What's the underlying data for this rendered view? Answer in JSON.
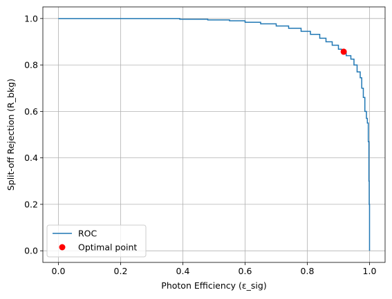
{
  "chart_data": {
    "type": "line",
    "xlabel": "Photon Efficiency (ε_sig)",
    "ylabel": "Split-off Rejection (R_bkg)",
    "xlim": [
      -0.05,
      1.05
    ],
    "ylim": [
      -0.05,
      1.05
    ],
    "xticks": [
      0.0,
      0.2,
      0.4,
      0.6,
      0.8,
      1.0
    ],
    "yticks": [
      0.0,
      0.2,
      0.4,
      0.6,
      0.8,
      1.0
    ],
    "xtick_labels": [
      "0.0",
      "0.2",
      "0.4",
      "0.6",
      "0.8",
      "1.0"
    ],
    "ytick_labels": [
      "0.0",
      "0.2",
      "0.4",
      "0.6",
      "0.8",
      "1.0"
    ],
    "grid": true,
    "legend_position": "lower-left",
    "series": [
      {
        "name": "ROC",
        "color": "#1f77b4",
        "x": [
          0.0,
          0.39,
          0.39,
          0.48,
          0.48,
          0.55,
          0.55,
          0.6,
          0.6,
          0.65,
          0.65,
          0.7,
          0.7,
          0.74,
          0.74,
          0.78,
          0.78,
          0.81,
          0.81,
          0.84,
          0.84,
          0.86,
          0.86,
          0.88,
          0.88,
          0.9,
          0.9,
          0.91,
          0.91,
          0.925,
          0.925,
          0.94,
          0.94,
          0.95,
          0.95,
          0.96,
          0.96,
          0.97,
          0.97,
          0.975,
          0.975,
          0.98,
          0.98,
          0.985,
          0.985,
          0.99,
          0.99,
          0.993,
          0.993,
          0.996,
          0.996,
          0.998,
          0.998,
          0.999,
          0.999,
          1.0,
          1.0
        ],
        "y": [
          1.0,
          1.0,
          0.997,
          0.997,
          0.994,
          0.994,
          0.99,
          0.99,
          0.984,
          0.984,
          0.977,
          0.977,
          0.968,
          0.968,
          0.958,
          0.958,
          0.945,
          0.945,
          0.932,
          0.932,
          0.915,
          0.915,
          0.9,
          0.9,
          0.885,
          0.885,
          0.868,
          0.868,
          0.855,
          0.855,
          0.84,
          0.84,
          0.825,
          0.825,
          0.8,
          0.8,
          0.77,
          0.77,
          0.745,
          0.745,
          0.7,
          0.7,
          0.66,
          0.66,
          0.6,
          0.6,
          0.57,
          0.57,
          0.55,
          0.55,
          0.47,
          0.47,
          0.3,
          0.3,
          0.2,
          0.2,
          0.0
        ]
      }
    ],
    "points": [
      {
        "name": "Optimal point",
        "color": "#ff0000",
        "x": 0.917,
        "y": 0.857
      }
    ]
  }
}
